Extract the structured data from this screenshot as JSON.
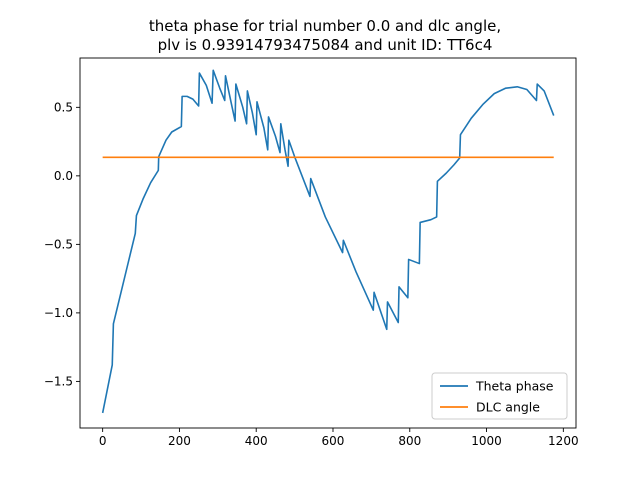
{
  "chart_data": {
    "type": "line",
    "title_lines": [
      "theta phase for trial number 0.0 and dlc angle,",
      "plv is 0.93914793475084 and unit ID: TT6c4"
    ],
    "xlabel": "",
    "ylabel": "",
    "xlim": [
      -59,
      1233
    ],
    "ylim": [
      -1.84,
      0.86
    ],
    "xticks": [
      0,
      200,
      400,
      600,
      800,
      1000,
      1200
    ],
    "xtick_labels": [
      "0",
      "200",
      "400",
      "600",
      "800",
      "1000",
      "1200"
    ],
    "yticks": [
      -1.5,
      -1.0,
      -0.5,
      0.0,
      0.5
    ],
    "ytick_labels": [
      "−1.5",
      "−1.0",
      "−0.5",
      "0.0",
      "0.5"
    ],
    "grid": false,
    "legend_position": "lower-right",
    "series": [
      {
        "name": "Theta phase",
        "color": "#1f77b4",
        "points": [
          [
            0,
            -1.73
          ],
          [
            25,
            -1.38
          ],
          [
            28,
            -1.08
          ],
          [
            85,
            -0.42
          ],
          [
            88,
            -0.29
          ],
          [
            105,
            -0.17
          ],
          [
            125,
            -0.05
          ],
          [
            145,
            0.04
          ],
          [
            146,
            0.14
          ],
          [
            165,
            0.26
          ],
          [
            180,
            0.32
          ],
          [
            205,
            0.36
          ],
          [
            207,
            0.58
          ],
          [
            220,
            0.58
          ],
          [
            235,
            0.56
          ],
          [
            250,
            0.51
          ],
          [
            252,
            0.75
          ],
          [
            270,
            0.66
          ],
          [
            285,
            0.53
          ],
          [
            288,
            0.77
          ],
          [
            305,
            0.64
          ],
          [
            318,
            0.55
          ],
          [
            320,
            0.73
          ],
          [
            335,
            0.53
          ],
          [
            345,
            0.4
          ],
          [
            347,
            0.67
          ],
          [
            365,
            0.5
          ],
          [
            375,
            0.38
          ],
          [
            377,
            0.62
          ],
          [
            390,
            0.46
          ],
          [
            400,
            0.3
          ],
          [
            402,
            0.54
          ],
          [
            420,
            0.35
          ],
          [
            430,
            0.19
          ],
          [
            432,
            0.43
          ],
          [
            450,
            0.29
          ],
          [
            462,
            0.17
          ],
          [
            464,
            0.38
          ],
          [
            475,
            0.19
          ],
          [
            483,
            0.07
          ],
          [
            485,
            0.26
          ],
          [
            500,
            0.14
          ],
          [
            540,
            -0.15
          ],
          [
            542,
            -0.02
          ],
          [
            580,
            -0.3
          ],
          [
            625,
            -0.56
          ],
          [
            627,
            -0.47
          ],
          [
            660,
            -0.7
          ],
          [
            705,
            -0.98
          ],
          [
            707,
            -0.85
          ],
          [
            740,
            -1.12
          ],
          [
            742,
            -0.92
          ],
          [
            770,
            -1.07
          ],
          [
            772,
            -0.81
          ],
          [
            795,
            -0.89
          ],
          [
            797,
            -0.61
          ],
          [
            825,
            -0.64
          ],
          [
            827,
            -0.34
          ],
          [
            855,
            -0.32
          ],
          [
            870,
            -0.3
          ],
          [
            872,
            -0.04
          ],
          [
            895,
            0.02
          ],
          [
            915,
            0.08
          ],
          [
            930,
            0.13
          ],
          [
            932,
            0.3
          ],
          [
            960,
            0.42
          ],
          [
            990,
            0.52
          ],
          [
            1020,
            0.6
          ],
          [
            1050,
            0.64
          ],
          [
            1080,
            0.65
          ],
          [
            1105,
            0.63
          ],
          [
            1130,
            0.55
          ],
          [
            1132,
            0.67
          ],
          [
            1150,
            0.62
          ],
          [
            1175,
            0.44
          ]
        ]
      },
      {
        "name": "DLC angle",
        "color": "#ff7f0e",
        "points": [
          [
            0,
            0.135
          ],
          [
            1175,
            0.135
          ]
        ]
      }
    ]
  }
}
